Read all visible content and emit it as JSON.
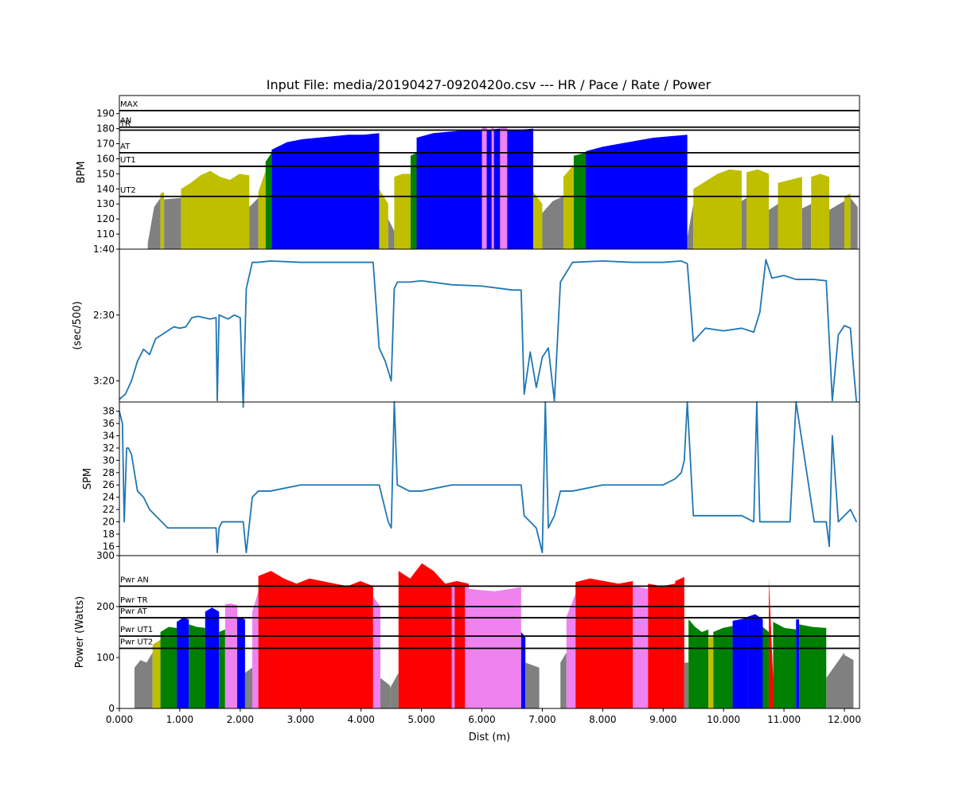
{
  "title": "Input File:  media/20190427-0920420o.csv --- HR / Pace / Rate / Power",
  "colors": {
    "gray": "#808080",
    "olive": "#bfbf00",
    "green": "#008000",
    "blue": "#0000ff",
    "violet": "#ee82ee",
    "red": "#ff0000",
    "line": "#1f77b4"
  },
  "chart_data": [
    {
      "type": "area",
      "ylabel": "BPM",
      "ylim": [
        100,
        202
      ],
      "yticks": [
        110,
        120,
        130,
        140,
        150,
        160,
        170,
        180,
        190
      ],
      "zones": [
        {
          "name": "MAX",
          "value": 192
        },
        {
          "name": "AN",
          "value": 181
        },
        {
          "name": "TR",
          "value": 179
        },
        {
          "name": "AT",
          "value": 164
        },
        {
          "name": "UT1",
          "value": 155
        },
        {
          "name": "UT2",
          "value": 135
        }
      ],
      "colored_segments": [
        [
          0.47,
          0.68,
          "gray",
          [
            104,
            128,
            134
          ]
        ],
        [
          0.68,
          0.74,
          "olive",
          [
            137,
            138
          ]
        ],
        [
          0.74,
          1.02,
          "gray",
          [
            133,
            134
          ]
        ],
        [
          1.02,
          2.15,
          "olive",
          [
            140,
            144,
            149,
            152,
            148,
            146,
            150,
            149
          ]
        ],
        [
          2.15,
          2.3,
          "gray",
          [
            128,
            134
          ]
        ],
        [
          2.3,
          2.42,
          "olive",
          [
            138,
            152
          ]
        ],
        [
          2.42,
          2.52,
          "green",
          [
            158,
            164
          ]
        ],
        [
          2.52,
          4.3,
          "blue",
          [
            166,
            171,
            173,
            174,
            175,
            176,
            176,
            177
          ]
        ],
        [
          4.3,
          4.45,
          "olive",
          [
            140,
            130
          ]
        ],
        [
          4.45,
          4.55,
          "gray",
          [
            120,
            112
          ]
        ],
        [
          4.55,
          4.82,
          "olive",
          [
            148,
            150,
            150
          ]
        ],
        [
          4.82,
          4.92,
          "green",
          [
            162,
            164
          ]
        ],
        [
          4.92,
          6.85,
          "blue",
          [
            174,
            177,
            178,
            179,
            179,
            180,
            179,
            180
          ]
        ],
        [
          6.85,
          7.0,
          "olive",
          [
            138,
            130
          ]
        ],
        [
          7.0,
          7.35,
          "gray",
          [
            124,
            132,
            135
          ]
        ],
        [
          7.35,
          7.52,
          "olive",
          [
            148,
            156
          ]
        ],
        [
          7.52,
          7.72,
          "green",
          [
            162,
            164
          ]
        ],
        [
          7.72,
          9.4,
          "blue",
          [
            165,
            168,
            170,
            172,
            174,
            175,
            176
          ]
        ],
        [
          9.4,
          9.5,
          "gray",
          [
            108,
            130
          ]
        ],
        [
          9.5,
          10.3,
          "olive",
          [
            140,
            145,
            150,
            153,
            152
          ]
        ],
        [
          10.3,
          10.38,
          "gray",
          [
            132,
            134
          ]
        ],
        [
          10.38,
          10.75,
          "olive",
          [
            151,
            153,
            150
          ]
        ],
        [
          10.75,
          10.9,
          "gray",
          [
            126,
            130
          ]
        ],
        [
          10.9,
          11.3,
          "olive",
          [
            144,
            146,
            148
          ]
        ],
        [
          11.3,
          11.45,
          "gray",
          [
            127,
            130
          ]
        ],
        [
          11.45,
          11.75,
          "olive",
          [
            148,
            150,
            148
          ]
        ],
        [
          11.75,
          12.0,
          "gray",
          [
            126,
            132
          ]
        ],
        [
          12.0,
          12.1,
          "olive",
          [
            135,
            137
          ]
        ],
        [
          12.1,
          12.22,
          "gray",
          [
            134,
            128
          ]
        ]
      ],
      "violet_strips": [
        [
          6.0,
          6.08
        ],
        [
          6.16,
          6.2
        ],
        [
          6.3,
          6.42
        ]
      ]
    },
    {
      "type": "line",
      "ylabel": "(sec/500)",
      "ylim_seconds": [
        216,
        100
      ],
      "yticks": [
        {
          "label": "1:40",
          "value": 100
        },
        {
          "label": "2:30",
          "value": 150
        },
        {
          "label": "3:20",
          "value": 200
        }
      ],
      "x": [
        0.0,
        0.1,
        0.2,
        0.3,
        0.4,
        0.5,
        0.6,
        0.7,
        0.8,
        0.9,
        1.0,
        1.1,
        1.2,
        1.3,
        1.4,
        1.5,
        1.6,
        1.62,
        1.65,
        1.7,
        1.8,
        1.9,
        2.0,
        2.05,
        2.1,
        2.2,
        2.3,
        2.5,
        3.0,
        3.5,
        4.0,
        4.2,
        4.3,
        4.4,
        4.5,
        4.55,
        4.6,
        4.8,
        5.0,
        5.5,
        6.0,
        6.5,
        6.65,
        6.7,
        6.8,
        6.9,
        7.0,
        7.1,
        7.2,
        7.3,
        7.5,
        8.0,
        8.5,
        9.0,
        9.3,
        9.4,
        9.5,
        9.7,
        10.0,
        10.3,
        10.5,
        10.6,
        10.7,
        10.8,
        11.0,
        11.2,
        11.5,
        11.7,
        11.8,
        11.9,
        12.0,
        12.1,
        12.15,
        12.2
      ],
      "values": [
        214,
        210,
        200,
        185,
        176,
        180,
        168,
        165,
        162,
        159,
        160,
        159,
        152,
        151,
        152,
        153,
        152,
        215,
        150,
        151,
        153,
        150,
        152,
        220,
        130,
        110,
        110,
        109,
        110,
        110,
        110,
        110,
        175,
        185,
        200,
        130,
        125,
        125,
        124,
        127,
        128,
        131,
        131,
        210,
        178,
        205,
        182,
        175,
        215,
        125,
        110,
        109,
        110,
        110,
        109,
        111,
        170,
        160,
        162,
        160,
        163,
        148,
        108,
        122,
        120,
        123,
        123,
        124,
        215,
        165,
        158,
        160,
        190,
        216
      ]
    },
    {
      "type": "line",
      "ylabel": "SPM",
      "ylim": [
        14.5,
        39.5
      ],
      "yticks": [
        16,
        18,
        20,
        22,
        24,
        26,
        28,
        30,
        32,
        34,
        36,
        38
      ],
      "x": [
        0.0,
        0.05,
        0.08,
        0.12,
        0.15,
        0.2,
        0.3,
        0.4,
        0.5,
        0.6,
        0.7,
        0.8,
        1.0,
        1.2,
        1.5,
        1.6,
        1.62,
        1.65,
        1.7,
        2.0,
        2.05,
        2.1,
        2.2,
        2.3,
        2.5,
        3.0,
        3.5,
        4.0,
        4.2,
        4.3,
        4.45,
        4.5,
        4.55,
        4.6,
        4.8,
        5.0,
        5.5,
        6.0,
        6.5,
        6.65,
        6.7,
        6.8,
        6.9,
        7.0,
        7.05,
        7.1,
        7.2,
        7.3,
        7.5,
        8.0,
        8.5,
        9.0,
        9.2,
        9.3,
        9.35,
        9.4,
        9.5,
        10.0,
        10.3,
        10.5,
        10.55,
        10.6,
        10.7,
        10.8,
        11.0,
        11.1,
        11.2,
        11.5,
        11.7,
        11.75,
        11.8,
        11.9,
        12.0,
        12.1,
        12.2
      ],
      "values": [
        38,
        36,
        20,
        32,
        32,
        31,
        25,
        24,
        22,
        21,
        20,
        19,
        19,
        19,
        19,
        19,
        15,
        19,
        20,
        20,
        20,
        15,
        24,
        25,
        25,
        26,
        26,
        26,
        26,
        26,
        20,
        19,
        40,
        26,
        25,
        25,
        26,
        26,
        26,
        26,
        21,
        20,
        19,
        15,
        40,
        19,
        21,
        25,
        25,
        26,
        26,
        26,
        27,
        28,
        30,
        40,
        21,
        21,
        21,
        20,
        40,
        20,
        20,
        20,
        20,
        20,
        40,
        20,
        20,
        16,
        34,
        20,
        21,
        22,
        20
      ]
    },
    {
      "type": "area",
      "ylabel": "Power (Watts)",
      "xlabel": "Dist (m)",
      "ylim": [
        0,
        300
      ],
      "yticks": [
        0,
        100,
        200,
        300
      ],
      "xlim": [
        0,
        12.25
      ],
      "xticks": [
        {
          "label": "0.000",
          "value": 0
        },
        {
          "label": "1.000",
          "value": 1
        },
        {
          "label": "2.000",
          "value": 2
        },
        {
          "label": "3.000",
          "value": 3
        },
        {
          "label": "4.000",
          "value": 4
        },
        {
          "label": "5.000",
          "value": 5
        },
        {
          "label": "6.000",
          "value": 6
        },
        {
          "label": "7.000",
          "value": 7
        },
        {
          "label": "8.000",
          "value": 8
        },
        {
          "label": "9.000",
          "value": 9
        },
        {
          "label": "10.000",
          "value": 10
        },
        {
          "label": "11.000",
          "value": 11
        },
        {
          "label": "12.000",
          "value": 12
        }
      ],
      "zones": [
        {
          "name": "Pwr AN",
          "value": 240
        },
        {
          "name": "Pwr TR",
          "value": 200
        },
        {
          "name": "Pwr AT",
          "value": 178
        },
        {
          "name": "Pwr UT1",
          "value": 142
        },
        {
          "name": "Pwr UT2",
          "value": 118
        }
      ],
      "colored_segments": [
        [
          0.25,
          0.55,
          "gray",
          [
            80,
            95,
            90,
            110
          ]
        ],
        [
          0.55,
          0.68,
          "olive",
          [
            125,
            135
          ]
        ],
        [
          0.68,
          0.95,
          "green",
          [
            150,
            160,
            158
          ]
        ],
        [
          0.95,
          1.15,
          "blue",
          [
            170,
            178,
            175
          ]
        ],
        [
          1.15,
          1.42,
          "green",
          [
            165,
            160,
            158
          ]
        ],
        [
          1.42,
          1.65,
          "blue",
          [
            190,
            198,
            190
          ]
        ],
        [
          1.65,
          1.75,
          "green",
          [
            150,
            155
          ]
        ],
        [
          1.75,
          1.95,
          "violet",
          [
            205,
            206,
            203
          ]
        ],
        [
          1.95,
          2.08,
          "blue",
          [
            180,
            175
          ]
        ],
        [
          2.08,
          2.2,
          "gray",
          [
            70,
            80
          ]
        ],
        [
          2.2,
          2.3,
          "violet",
          [
            190,
            230
          ]
        ],
        [
          2.3,
          4.2,
          "red",
          [
            260,
            270,
            255,
            245,
            255,
            250,
            245,
            240,
            250,
            240
          ]
        ],
        [
          4.2,
          4.32,
          "violet",
          [
            220,
            200
          ]
        ],
        [
          4.32,
          4.48,
          "gray",
          [
            60,
            45
          ]
        ],
        [
          4.48,
          4.62,
          "gray",
          [
            40,
            70
          ]
        ],
        [
          4.62,
          5.78,
          "red",
          [
            270,
            255,
            285,
            270,
            245,
            250,
            245
          ]
        ],
        [
          5.78,
          6.65,
          "violet",
          [
            235,
            232,
            230,
            234,
            238
          ]
        ],
        [
          6.65,
          6.72,
          "blue",
          [
            150,
            140
          ]
        ],
        [
          6.72,
          6.95,
          "gray",
          [
            90,
            80
          ]
        ],
        [
          7.3,
          7.4,
          "gray",
          [
            90,
            110
          ]
        ],
        [
          7.4,
          7.55,
          "violet",
          [
            180,
            225
          ]
        ],
        [
          7.55,
          8.5,
          "red",
          [
            248,
            255,
            250,
            245,
            250
          ]
        ],
        [
          8.5,
          8.75,
          "violet",
          [
            240,
            235
          ]
        ],
        [
          8.75,
          9.2,
          "red",
          [
            245,
            240,
            245
          ]
        ],
        [
          9.2,
          9.35,
          "red",
          [
            250,
            258
          ]
        ],
        [
          9.35,
          9.42,
          "gray",
          [
            90
          ]
        ],
        [
          9.42,
          9.75,
          "green",
          [
            175,
            160,
            150,
            155
          ]
        ],
        [
          9.75,
          9.83,
          "olive",
          [
            140
          ]
        ],
        [
          9.83,
          10.15,
          "green",
          [
            150,
            158,
            162
          ]
        ],
        [
          10.15,
          10.4,
          "blue",
          [
            172,
            178
          ]
        ],
        [
          10.4,
          10.65,
          "blue",
          [
            180,
            185,
            175
          ]
        ],
        [
          10.65,
          10.75,
          "green",
          [
            160,
            150
          ]
        ],
        [
          10.75,
          10.82,
          "red",
          [
            255,
            60
          ]
        ],
        [
          10.82,
          11.2,
          "green",
          [
            170,
            158,
            155
          ]
        ],
        [
          11.2,
          11.25,
          "blue",
          [
            175
          ]
        ],
        [
          11.25,
          11.7,
          "green",
          [
            165,
            160,
            158
          ]
        ],
        [
          11.7,
          12.0,
          "gray",
          [
            60,
            85,
            110
          ]
        ],
        [
          12.0,
          12.15,
          "gray",
          [
            105,
            95
          ]
        ]
      ],
      "violet_strips": [
        [
          5.5,
          5.55
        ],
        [
          5.72,
          5.78
        ]
      ]
    }
  ]
}
